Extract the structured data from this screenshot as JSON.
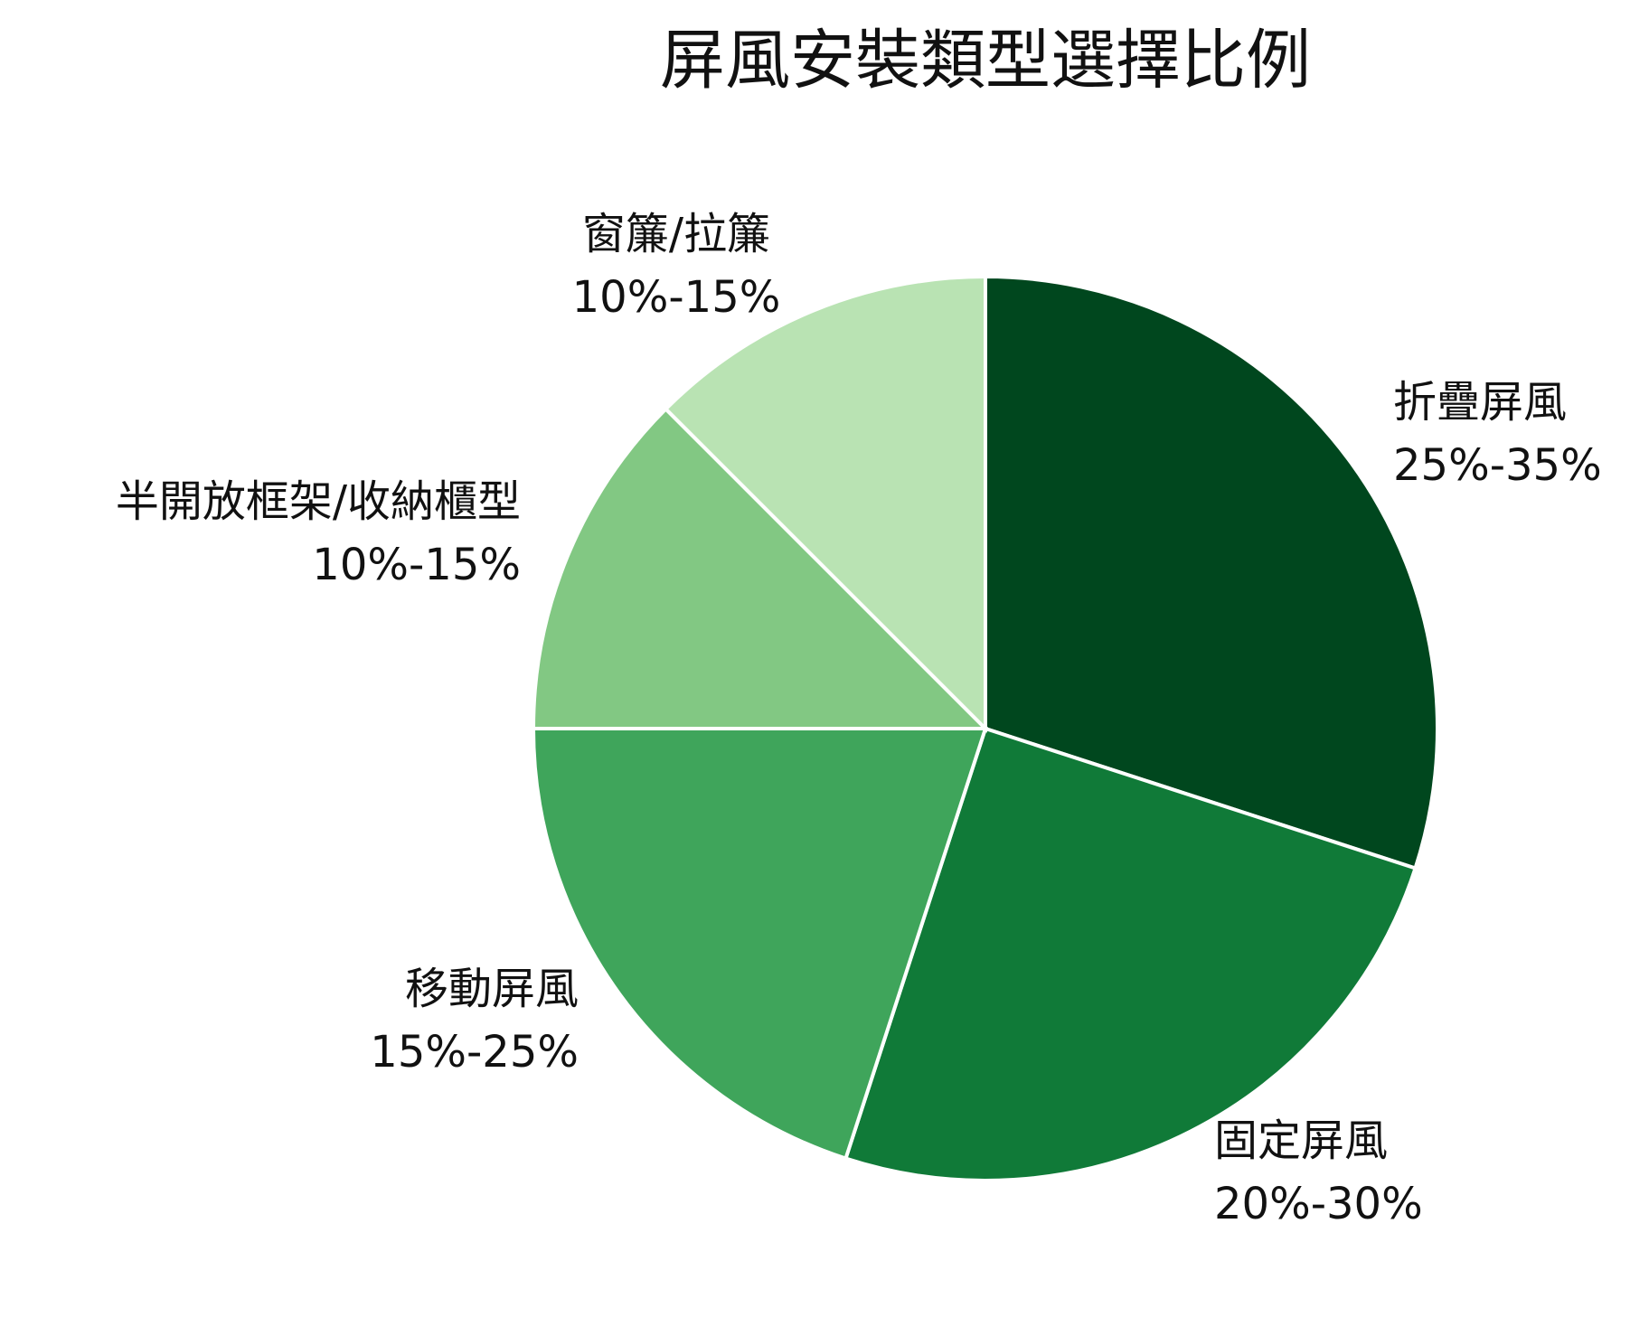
{
  "chart_data": {
    "type": "pie",
    "title": "屏風安裝類型選擇比例",
    "categories": [
      "折疊屏風",
      "固定屏風",
      "移動屏風",
      "半開放框架/收納櫃型",
      "窗簾/拉簾"
    ],
    "values": [
      30,
      25,
      20,
      12.5,
      12.5
    ],
    "value_labels": [
      "25%-35%",
      "20%-30%",
      "15%-25%",
      "10%-15%",
      "10%-15%"
    ],
    "colors": [
      "#00471e",
      "#107a38",
      "#3fa55b",
      "#82c883",
      "#b9e3b3"
    ]
  }
}
